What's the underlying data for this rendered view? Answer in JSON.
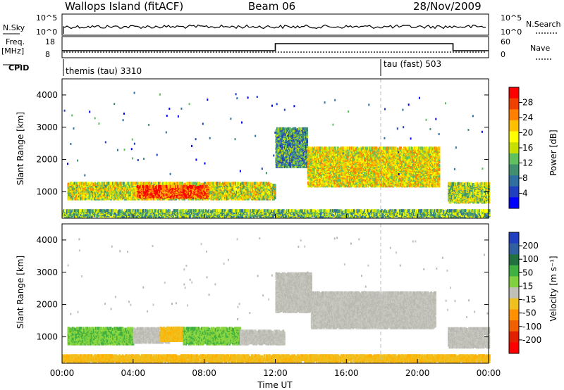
{
  "header": {
    "station": "Wallops Island (fitACF)",
    "beam": "Beam 06",
    "date": "28/Nov/2009"
  },
  "status_panel": {
    "nsky_label": "N.Sky",
    "nsky_ticks": [
      "10^5",
      "10^0"
    ],
    "nsearch_label": "N.Search",
    "nsearch_ticks": [
      "10^5",
      "10^0"
    ],
    "freq_label_1": "Freq.",
    "freq_label_2": "[MHz]",
    "freq_ticks": [
      "18",
      "8"
    ],
    "nave_label": "Nave",
    "nave_ticks": [
      "60",
      "0"
    ],
    "cpid_label": "CPID",
    "cpid_segments": [
      {
        "label": "themis (tau) 3310",
        "start_hour": 0
      },
      {
        "label": "tau (fast) 503",
        "start_hour": 18
      }
    ],
    "freq_series": [
      {
        "from_hour": 0,
        "to_hour": 12,
        "level": "low"
      },
      {
        "from_hour": 12,
        "to_hour": 22,
        "level": "high"
      },
      {
        "from_hour": 22,
        "to_hour": 24,
        "level": "low"
      }
    ]
  },
  "chart_data": [
    {
      "type": "heatmap",
      "title": "Power",
      "xlabel": "",
      "ylabel": "Slant Range [km]",
      "xlim": [
        0,
        24
      ],
      "ylim": [
        180,
        4500
      ],
      "yticks": [
        "1000",
        "2000",
        "3000",
        "4000"
      ],
      "colorbar": {
        "label": "Power [dB]",
        "ticks": [
          "28",
          "24",
          "20",
          "16",
          "12",
          "8",
          "4"
        ],
        "colors": [
          "#ff0000",
          "#f04000",
          "#ff8000",
          "#ffc000",
          "#ffff00",
          "#c8e000",
          "#60c060",
          "#409070",
          "#3070a0",
          "#2040c0",
          "#0000ff"
        ]
      },
      "echo_regions": [
        {
          "h0": 0.3,
          "h1": 12.0,
          "r0": 800,
          "r1": 1300,
          "level": 0.55
        },
        {
          "h0": 4.2,
          "h1": 8.2,
          "r0": 850,
          "r1": 1200,
          "level": 0.9
        },
        {
          "h0": 12.0,
          "h1": 13.8,
          "r0": 1800,
          "r1": 3000,
          "level": 0.3
        },
        {
          "h0": 13.8,
          "h1": 21.2,
          "r0": 1200,
          "r1": 2400,
          "level": 0.6
        },
        {
          "h0": 21.7,
          "h1": 24.0,
          "r0": 700,
          "r1": 1300,
          "level": 0.5
        },
        {
          "h0": 0.0,
          "h1": 24.0,
          "r0": 250,
          "r1": 450,
          "level": 0.4
        }
      ]
    },
    {
      "type": "heatmap",
      "title": "Velocity",
      "xlabel": "Time UT",
      "ylabel": "Slant Range [km]",
      "xlim": [
        0,
        24
      ],
      "ylim": [
        180,
        4500
      ],
      "xticks": [
        "00:00",
        "04:00",
        "08:00",
        "12:00",
        "16:00",
        "20:00",
        "00:00"
      ],
      "yticks": [
        "1000",
        "2000",
        "3000",
        "4000"
      ],
      "colorbar": {
        "label": "Velocity [m s⁻¹]",
        "ticks": [
          "200",
          "100",
          "50",
          "15",
          "-15",
          "-50",
          "-100",
          "-200"
        ],
        "colors": [
          "#2040c0",
          "#3060a0",
          "#207040",
          "#40b040",
          "#80d040",
          "#c0c0b8",
          "#f0c020",
          "#ff9000",
          "#f06000",
          "#e02000",
          "#ff0000"
        ]
      },
      "echo_regions": [
        {
          "h0": 0.3,
          "h1": 4.0,
          "r0": 800,
          "r1": 1300,
          "vel": "green"
        },
        {
          "h0": 4.0,
          "h1": 6.0,
          "r0": 850,
          "r1": 1300,
          "vel": "grey"
        },
        {
          "h0": 5.5,
          "h1": 6.8,
          "r0": 900,
          "r1": 1300,
          "vel": "orange"
        },
        {
          "h0": 6.8,
          "h1": 10.0,
          "r0": 800,
          "r1": 1300,
          "vel": "green"
        },
        {
          "h0": 10.0,
          "h1": 12.5,
          "r0": 800,
          "r1": 1200,
          "vel": "grey"
        },
        {
          "h0": 12.0,
          "h1": 14.0,
          "r0": 1800,
          "r1": 3000,
          "vel": "grey"
        },
        {
          "h0": 14.0,
          "h1": 21.0,
          "r0": 1300,
          "r1": 2400,
          "vel": "grey"
        },
        {
          "h0": 21.7,
          "h1": 24.0,
          "r0": 700,
          "r1": 1300,
          "vel": "grey"
        },
        {
          "h0": 0.0,
          "h1": 24.0,
          "r0": 250,
          "r1": 450,
          "vel": "orange"
        }
      ]
    }
  ]
}
